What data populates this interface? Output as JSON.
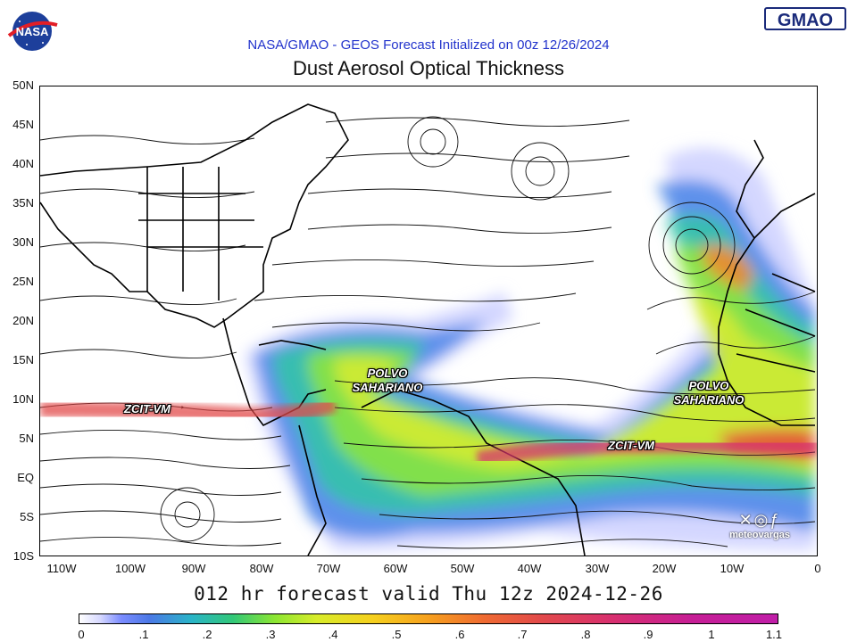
{
  "header": {
    "nasa_logo": "NASA",
    "gmao_logo": "GMAO",
    "subtitle": "NASA/GMAO - GEOS Forecast Initialized on 00z 12/26/2024",
    "title": "Dust Aerosol Optical Thickness",
    "footer": "012 hr forecast valid Thu 12z 2024-12-26"
  },
  "map": {
    "lat_labels": [
      "50N",
      "45N",
      "40N",
      "35N",
      "30N",
      "25N",
      "20N",
      "15N",
      "10N",
      "5N",
      "EQ",
      "5S",
      "10S"
    ],
    "lon_labels": [
      "110W",
      "100W",
      "90W",
      "80W",
      "70W",
      "60W",
      "50W",
      "40W",
      "30W",
      "20W",
      "10W",
      "0"
    ],
    "annotations": {
      "zcit_west": "ZCIT-VM",
      "zcit_east": "ZCIT-VM",
      "dust_west_line1": "POLVO",
      "dust_west_line2": "SAHARIANO",
      "dust_east_line1": "POLVO",
      "dust_east_line2": "SAHARIANO"
    },
    "watermark": "meteovargas",
    "icons": [
      "x-icon",
      "instagram-icon",
      "facebook-icon"
    ]
  },
  "colorbar": {
    "labels": [
      "0",
      ".1",
      ".2",
      ".3",
      ".4",
      ".5",
      ".6",
      ".7",
      ".8",
      ".9",
      "1",
      "1.1"
    ],
    "colors": {
      "low": "#d6d8ff",
      "mid": "#8ce632",
      "high": "#c01ea8"
    }
  }
}
